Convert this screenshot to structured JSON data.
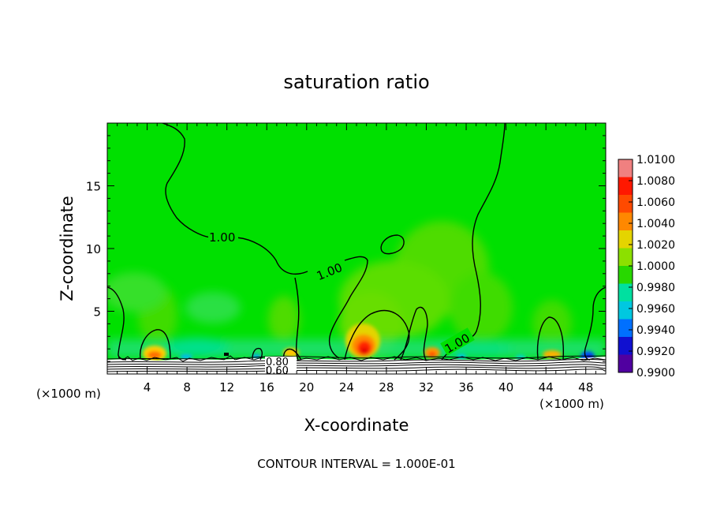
{
  "chart_data": {
    "type": "heatmap",
    "title": "saturation ratio",
    "xlabel": "X-coordinate",
    "ylabel": "Z-coordinate",
    "x_unit": "(×1000 m)",
    "y_unit": "(×1000 m)",
    "xlim": [
      0,
      50
    ],
    "ylim": [
      0,
      20
    ],
    "x_ticks": [
      "4",
      "8",
      "12",
      "16",
      "20",
      "24",
      "28",
      "32",
      "36",
      "40",
      "44",
      "48"
    ],
    "x_tick_values": [
      4,
      8,
      12,
      16,
      20,
      24,
      28,
      32,
      36,
      40,
      44,
      48
    ],
    "y_ticks": [
      "5",
      "10",
      "15"
    ],
    "y_tick_values": [
      5,
      10,
      15
    ],
    "footer": "CONTOUR INTERVAL = 1.000E-01",
    "contour_interval": 0.1,
    "contour_labels": [
      {
        "text": "1.00",
        "x": 11.5,
        "z": 10.9
      },
      {
        "text": "1.00",
        "x": 22.5,
        "z": 8.5
      },
      {
        "text": "1.00",
        "x": 35.5,
        "z": 3.1
      },
      {
        "text": "0.80",
        "x": 17.5,
        "z": 0.9
      },
      {
        "text": "0.60",
        "x": 17.5,
        "z": 0.25
      }
    ],
    "colorbar": {
      "levels": [
        "1.0100",
        "1.0080",
        "1.0060",
        "1.0040",
        "1.0020",
        "1.0000",
        "0.9980",
        "0.9960",
        "0.9940",
        "0.9920",
        "0.9900"
      ],
      "level_values": [
        1.01,
        1.008,
        1.006,
        1.004,
        1.002,
        1.0,
        0.998,
        0.996,
        0.994,
        0.992,
        0.99
      ],
      "colors": [
        "#f08080",
        "#ff1800",
        "#ff4a00",
        "#ff8800",
        "#e4d400",
        "#8ce000",
        "#28d800",
        "#00e0a0",
        "#00c8e0",
        "#0070ff",
        "#1010d0",
        "#5000a0"
      ]
    },
    "background_value": 1.0005,
    "features": [
      {
        "kind": "hotspot",
        "x": 5,
        "z": 1.4,
        "peak": 1.006
      },
      {
        "kind": "hotspot",
        "x": 18.5,
        "z": 1.3,
        "peak": 1.005
      },
      {
        "kind": "hotspot",
        "x": 25.8,
        "z": 2.4,
        "peak": 1.008
      },
      {
        "kind": "hotspot",
        "x": 32.5,
        "z": 1.5,
        "peak": 1.006
      },
      {
        "kind": "hotspot",
        "x": 44.5,
        "z": 1.3,
        "peak": 1.004
      },
      {
        "kind": "coldspot",
        "x": 47.5,
        "z": 1.0,
        "peak": 0.992
      },
      {
        "kind": "coldspot",
        "x": 7.5,
        "z": 1.0,
        "peak": 0.996
      },
      {
        "kind": "coldspot",
        "x": 14,
        "z": 1.0,
        "peak": 0.996
      }
    ]
  }
}
